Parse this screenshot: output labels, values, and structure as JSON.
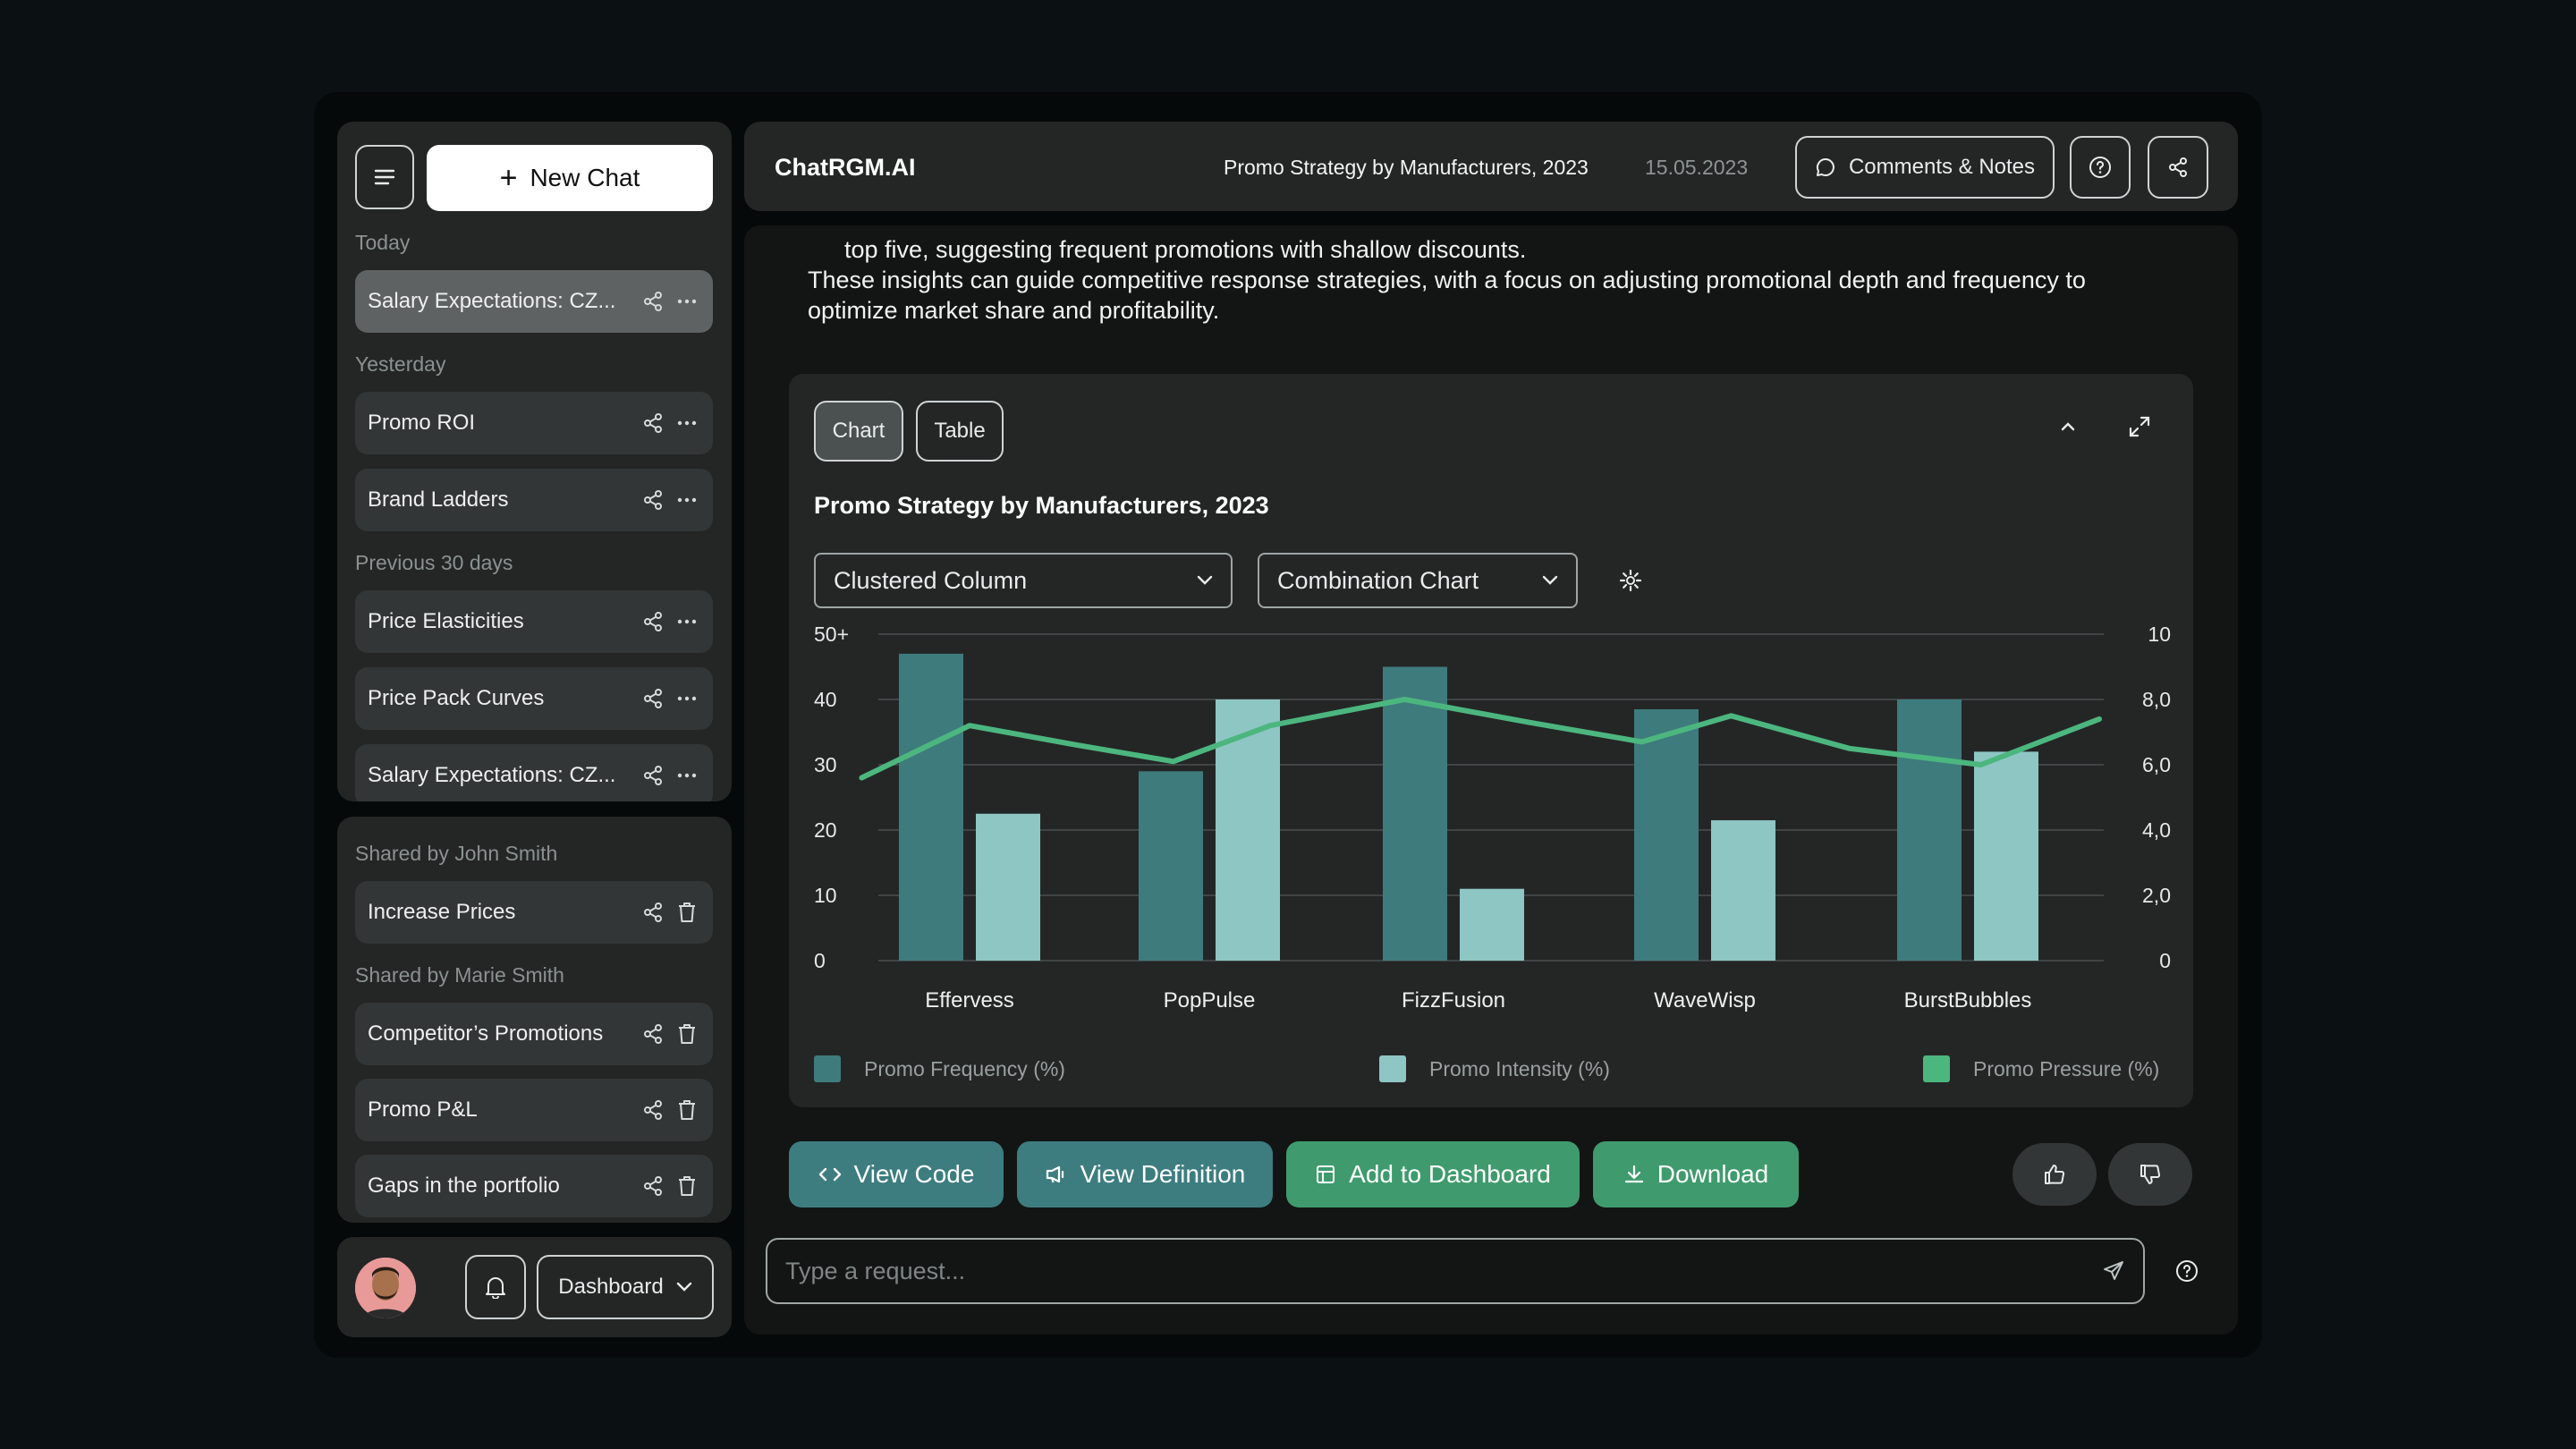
{
  "sidebar": {
    "new_chat_label": "New Chat",
    "groups": {
      "today": "Today",
      "yesterday": "Yesterday",
      "previous": "Previous 30 days"
    },
    "items": [
      {
        "label": "Salary Expectations: CZ..."
      },
      {
        "label": "Promo ROI"
      },
      {
        "label": "Brand Ladders"
      },
      {
        "label": "Price Elasticities"
      },
      {
        "label": "Price Pack Curves"
      },
      {
        "label": "Salary Expectations: CZ..."
      }
    ],
    "shared": {
      "john_label": "Shared by John Smith",
      "marie_label": "Shared by Marie Smith",
      "items": [
        {
          "label": "Increase Prices"
        },
        {
          "label": "Competitor’s Promotions"
        },
        {
          "label": "Promo P&L"
        },
        {
          "label": "Gaps in the portfolio"
        }
      ]
    },
    "dashboard_label": "Dashboard"
  },
  "header": {
    "brand": "ChatRGM.AI",
    "title": "Promo Strategy by Manufacturers, 2023",
    "date": "15.05.2023",
    "comments_label": "Comments & Notes"
  },
  "message": {
    "line1": "top five, suggesting frequent promotions with shallow discounts.",
    "line2": "These insights can guide competitive response strategies, with a focus on adjusting promotional depth and frequency to optimize market share and profitability."
  },
  "card": {
    "tab_chart": "Chart",
    "tab_table": "Table",
    "title": "Promo Strategy by Manufacturers, 2023",
    "select_primary": "Clustered Column",
    "select_secondary": "Combination Chart"
  },
  "chart_data": {
    "type": "bar",
    "categories": [
      "Effervess",
      "PopPulse",
      "FizzFusion",
      "WaveWisp",
      "BurstBubbles"
    ],
    "series": [
      {
        "name": "Promo Frequency (%)",
        "type": "bar",
        "axis": "left",
        "color": "#3e7b7d",
        "values": [
          47,
          29,
          45,
          38.5,
          40
        ]
      },
      {
        "name": "Promo Intensity (%)",
        "type": "bar",
        "axis": "left",
        "color": "#8ec6c4",
        "values": [
          22.5,
          40,
          11,
          21.5,
          32
        ]
      },
      {
        "name": "Promo Pressure (%)",
        "type": "line",
        "axis": "right",
        "color": "#4cb67f",
        "x": [
          -0.45,
          0.0,
          0.45,
          0.85,
          1.25,
          1.8,
          2.3,
          2.75,
          3.1,
          3.55,
          4.05,
          4.5
        ],
        "values": [
          5.6,
          7.2,
          6.6,
          6.1,
          7.2,
          8.0,
          7.3,
          6.7,
          7.5,
          6.5,
          6.0,
          7.4
        ]
      }
    ],
    "y_left_ticks": [
      "0",
      "10",
      "20",
      "30",
      "40",
      "50+"
    ],
    "y_right_ticks": [
      "0",
      "2,0",
      "4,0",
      "6,0",
      "8,0",
      "10"
    ],
    "ylim_left": [
      0,
      50
    ],
    "ylim_right": [
      0,
      10
    ],
    "grid": true,
    "legend_position": "bottom"
  },
  "actions": {
    "view_code": "View Code",
    "view_definition": "View Definition",
    "add_dashboard": "Add to Dashboard",
    "download": "Download"
  },
  "input": {
    "placeholder": "Type a request..."
  }
}
